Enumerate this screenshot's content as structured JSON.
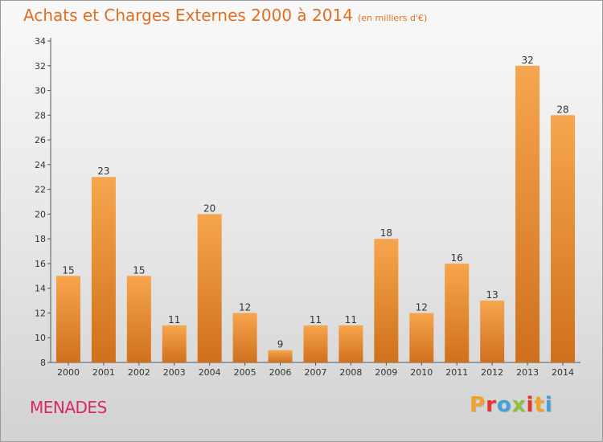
{
  "header": {
    "title": "Achats et Charges Externes 2000 à 2014",
    "unit": "(en milliers d'€)"
  },
  "footer": {
    "commune": "MENADES",
    "brand": [
      "P",
      "r",
      "o",
      "x",
      "i",
      "t",
      "i"
    ],
    "brand_colors": [
      "#f2a12a",
      "#e8342e",
      "#43a0d8",
      "#8cc23c",
      "#e8342e",
      "#f2a12a",
      "#43a0d8"
    ]
  },
  "colors": {
    "bar_top": "#f6a64e",
    "bar_bottom": "#d0701c",
    "title": "#e07020",
    "commune": "#d8286a"
  },
  "chart_data": {
    "type": "bar",
    "title": "Achats et Charges Externes 2000 à 2014",
    "categories": [
      "2000",
      "2001",
      "2002",
      "2003",
      "2004",
      "2005",
      "2006",
      "2007",
      "2008",
      "2009",
      "2010",
      "2011",
      "2012",
      "2013",
      "2014"
    ],
    "values": [
      15,
      23,
      15,
      11,
      20,
      12,
      9,
      11,
      11,
      18,
      12,
      16,
      13,
      32,
      28
    ],
    "data_labels": [
      "15",
      "23",
      "15",
      "11",
      "20",
      "12",
      "9",
      "11",
      "11",
      "18",
      "12",
      "16",
      "13",
      "32",
      "28"
    ],
    "ylim": [
      8,
      34
    ],
    "yticks": [
      "8",
      "10",
      "12",
      "14",
      "16",
      "18",
      "20",
      "22",
      "24",
      "26",
      "28",
      "30",
      "32",
      "34"
    ],
    "grid": false,
    "xlabel": "",
    "ylabel": ""
  }
}
